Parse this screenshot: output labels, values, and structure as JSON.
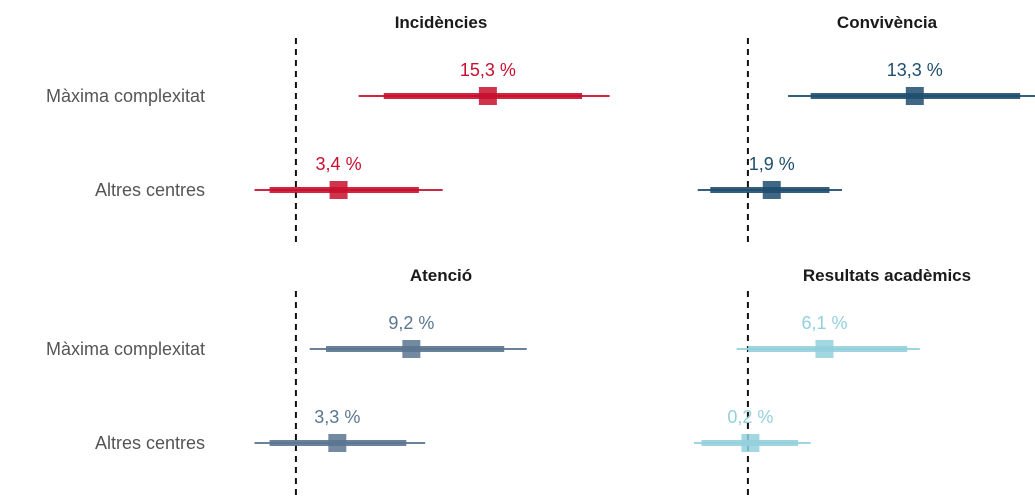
{
  "chart_data": [
    {
      "type": "forest",
      "title": "Incidències",
      "color": "#c8102e",
      "rows": [
        {
          "category": "Màxima complexitat",
          "value": 15.3,
          "label": "15,3 %",
          "ci95": [
            5.0,
            25.0
          ],
          "ci80": [
            7.0,
            22.8
          ]
        },
        {
          "category": "Altres centres",
          "value": 3.4,
          "label": "3,4 %",
          "ci95": [
            -3.3,
            11.7
          ],
          "ci80": [
            -2.1,
            9.8
          ]
        }
      ]
    },
    {
      "type": "forest",
      "title": "Convivència",
      "color": "#1f4e6e",
      "rows": [
        {
          "category": "Màxima complexitat",
          "value": 13.3,
          "label": "13,3 %",
          "ci95": [
            3.2,
            23.5
          ],
          "ci80": [
            5.0,
            21.7
          ]
        },
        {
          "category": "Altres centres",
          "value": 1.9,
          "label": "1,9 %",
          "ci95": [
            -4.0,
            7.5
          ],
          "ci80": [
            -3.0,
            6.5
          ]
        }
      ]
    },
    {
      "type": "forest",
      "title": "Atenció",
      "color": "#5a7690",
      "rows": [
        {
          "category": "Màxima complexitat",
          "value": 9.2,
          "label": "9,2 %",
          "ci95": [
            1.1,
            18.4
          ],
          "ci80": [
            2.4,
            16.6
          ]
        },
        {
          "category": "Altres centres",
          "value": 3.3,
          "label": "3,3 %",
          "ci95": [
            -3.3,
            10.3
          ],
          "ci80": [
            -2.1,
            8.8
          ]
        }
      ]
    },
    {
      "type": "forest",
      "title": "Resultats acadèmics",
      "color": "#93d0dc",
      "rows": [
        {
          "category": "Màxima complexitat",
          "value": 6.1,
          "label": "6,1 %",
          "ci95": [
            -0.9,
            13.7
          ],
          "ci80": [
            0.0,
            12.7
          ]
        },
        {
          "category": "Altres centres",
          "value": 0.2,
          "label": "0,2 %",
          "ci95": [
            -4.3,
            5.0
          ],
          "ci80": [
            -3.7,
            4.0
          ]
        }
      ]
    }
  ],
  "reference_value": 0,
  "x_range": [
    -3.5,
    22.8
  ]
}
